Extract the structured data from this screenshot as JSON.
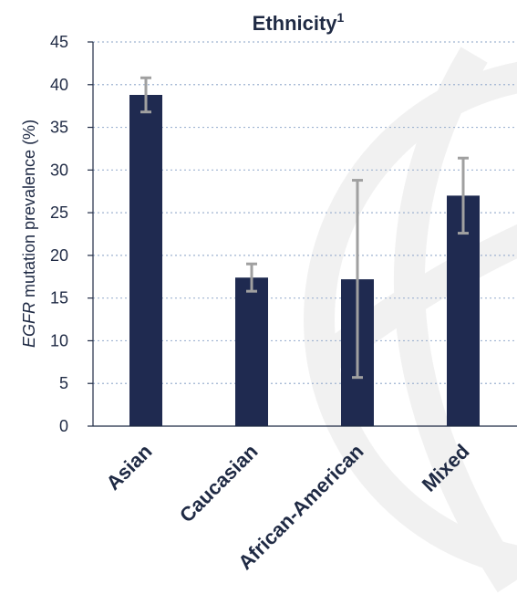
{
  "chart_data": {
    "type": "bar",
    "title": "Ethnicity",
    "title_superscript": "1",
    "ylabel_italic": "EGFR",
    "ylabel_rest": " mutation prevalence (%)",
    "categories": [
      "Asian",
      "Caucasian",
      "African-American",
      "Mixed"
    ],
    "values": [
      38.8,
      17.4,
      17.2,
      27.0
    ],
    "error_low": [
      36.8,
      15.8,
      5.7,
      22.6
    ],
    "error_high": [
      40.8,
      19.0,
      28.8,
      31.4
    ],
    "ylim": [
      0,
      45
    ],
    "yticks": [
      0,
      5,
      10,
      15,
      20,
      25,
      30,
      35,
      40,
      45
    ],
    "grid": true,
    "colors": {
      "bar": "#1f2a50",
      "error_bar": "#a0a0a0",
      "grid": "#9fb3d1",
      "axis": "#1f2a44",
      "watermark": "#f1f1f1"
    }
  }
}
